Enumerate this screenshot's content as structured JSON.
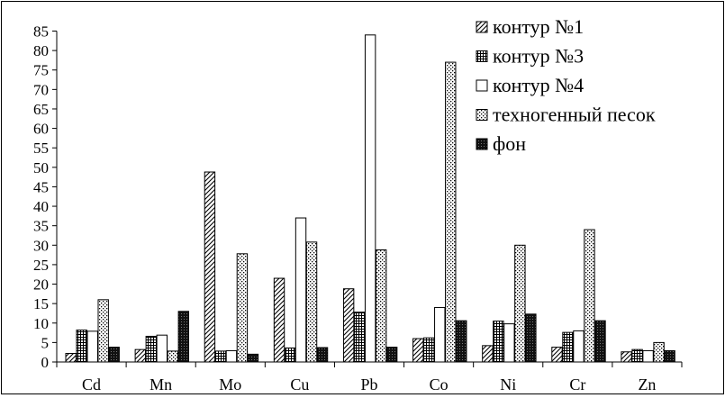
{
  "chart_data": {
    "type": "bar",
    "title": "",
    "xlabel": "",
    "ylabel": "",
    "ylim": [
      0,
      85
    ],
    "yticks": [
      0,
      5,
      10,
      15,
      20,
      25,
      30,
      35,
      40,
      45,
      50,
      55,
      60,
      65,
      70,
      75,
      80,
      85
    ],
    "categories": [
      "Cd",
      "Mn",
      "Mo",
      "Cu",
      "Pb",
      "Co",
      "Ni",
      "Cr",
      "Zn"
    ],
    "series": [
      {
        "name": "контур №1",
        "pattern": "diagonal-hatch",
        "values": [
          2.2,
          3.2,
          48.8,
          21.5,
          18.8,
          6.0,
          4.2,
          3.8,
          2.6
        ]
      },
      {
        "name": "контур №3",
        "pattern": "grid-hatch",
        "values": [
          8.2,
          6.6,
          2.8,
          3.6,
          12.8,
          6.2,
          10.5,
          7.6,
          3.2
        ]
      },
      {
        "name": "контур №4",
        "pattern": "white",
        "values": [
          7.9,
          6.9,
          2.9,
          37.0,
          84.0,
          14.0,
          9.8,
          8.0,
          2.9
        ]
      },
      {
        "name": "техногенный песок",
        "pattern": "dots",
        "values": [
          16.0,
          2.8,
          27.8,
          30.8,
          28.8,
          77.0,
          30.0,
          34.0,
          5.0
        ]
      },
      {
        "name": "фон",
        "pattern": "dark",
        "values": [
          3.8,
          13.0,
          2.0,
          3.7,
          3.8,
          10.6,
          12.3,
          10.6,
          2.9
        ]
      }
    ],
    "legend_position": "top-right",
    "grid": false
  }
}
